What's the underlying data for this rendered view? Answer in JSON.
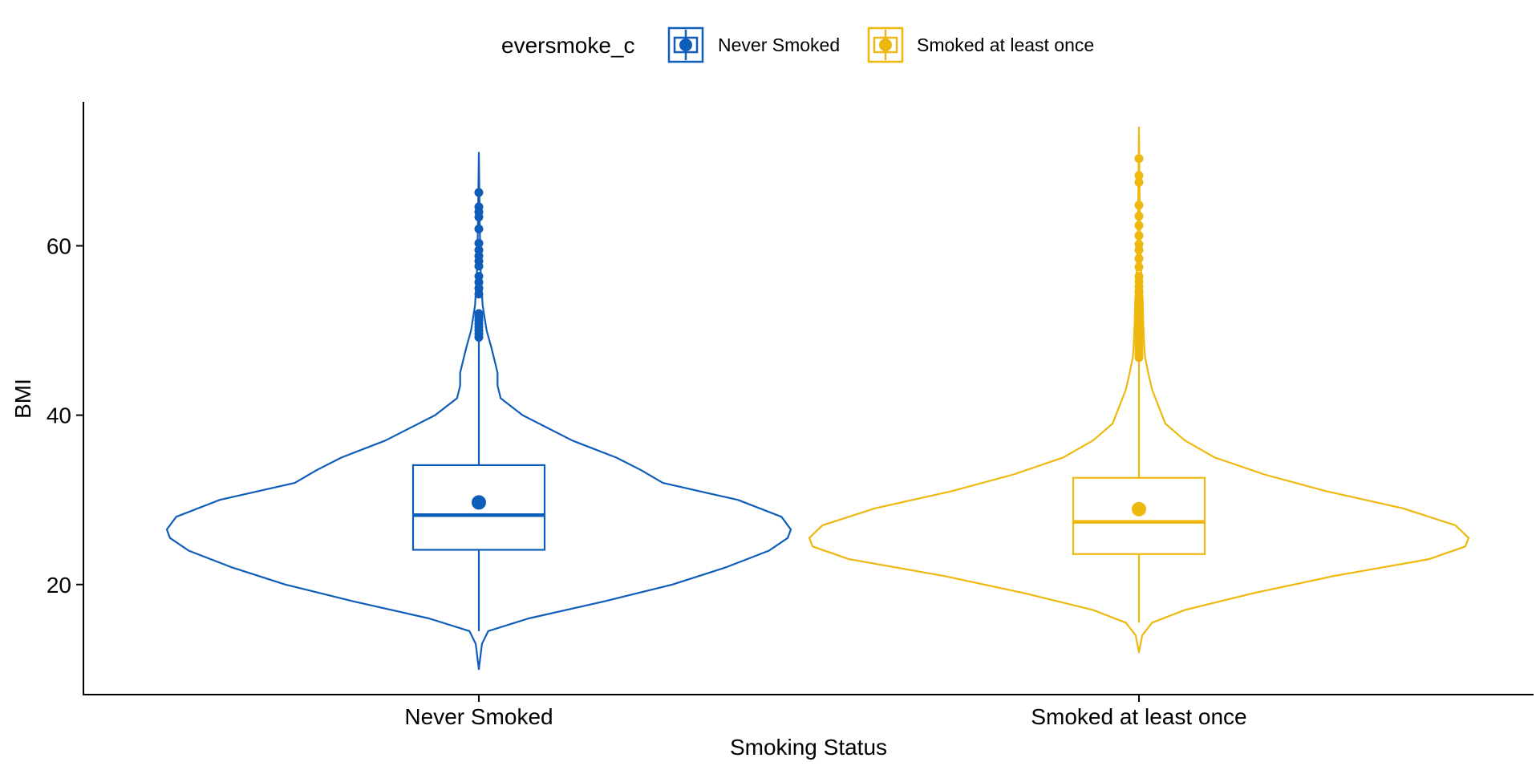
{
  "chart_data": {
    "type": "violin",
    "title": "",
    "xlabel": "Smoking Status",
    "ylabel": "BMI",
    "ylim": [
      7,
      77
    ],
    "y_ticks": [
      20,
      40,
      60
    ],
    "grid": false,
    "legend": {
      "title": "eversmoke_c",
      "placement": "top",
      "entries": [
        "Never Smoked",
        "Smoked at least once"
      ]
    },
    "categories": [
      "Never Smoked",
      "Smoked at least once"
    ],
    "series": [
      {
        "name": "Never Smoked",
        "color": "#0E5DB8",
        "violin_range": [
          10,
          71
        ],
        "density": [
          [
            10,
            0.0
          ],
          [
            13,
            0.01
          ],
          [
            14.5,
            0.03
          ],
          [
            16,
            0.16
          ],
          [
            18,
            0.4
          ],
          [
            20,
            0.62
          ],
          [
            22,
            0.79
          ],
          [
            24,
            0.93
          ],
          [
            25.5,
            0.99
          ],
          [
            26.5,
            1.0
          ],
          [
            28,
            0.97
          ],
          [
            30,
            0.83
          ],
          [
            32,
            0.59
          ],
          [
            33.5,
            0.52
          ],
          [
            35,
            0.44
          ],
          [
            37,
            0.3
          ],
          [
            40,
            0.14
          ],
          [
            42,
            0.07
          ],
          [
            43.5,
            0.06
          ],
          [
            45,
            0.06
          ],
          [
            46.5,
            0.05
          ],
          [
            48,
            0.04
          ],
          [
            50,
            0.025
          ],
          [
            53,
            0.012
          ],
          [
            57,
            0.006
          ],
          [
            62,
            0.003
          ],
          [
            71,
            0.0
          ]
        ],
        "box": {
          "q1": 24.1,
          "median": 28.2,
          "q3": 34.1,
          "whisker_low": 14.5,
          "whisker_high": 49.0,
          "mean": 29.7
        },
        "outliers": [
          49.2,
          49.6,
          50.0,
          50.4,
          50.8,
          51.2,
          51.6,
          52.0,
          54.3,
          55.0,
          55.7,
          56.4,
          57.6,
          58.2,
          58.8,
          59.5,
          60.3,
          62.0,
          63.4,
          64.0,
          64.6,
          66.3
        ]
      },
      {
        "name": "Smoked at least once",
        "color": "#EFB80F",
        "violin_range": [
          12,
          74
        ],
        "density": [
          [
            12,
            0.0
          ],
          [
            14,
            0.01
          ],
          [
            15.5,
            0.04
          ],
          [
            17,
            0.14
          ],
          [
            19,
            0.35
          ],
          [
            21,
            0.59
          ],
          [
            23,
            0.88
          ],
          [
            24.5,
            0.99
          ],
          [
            25.5,
            1.0
          ],
          [
            27,
            0.96
          ],
          [
            29,
            0.8
          ],
          [
            31,
            0.57
          ],
          [
            33,
            0.38
          ],
          [
            35,
            0.23
          ],
          [
            37,
            0.14
          ],
          [
            39,
            0.08
          ],
          [
            41,
            0.06
          ],
          [
            43,
            0.04
          ],
          [
            45,
            0.028
          ],
          [
            47,
            0.018
          ],
          [
            49,
            0.015
          ],
          [
            51,
            0.013
          ],
          [
            53,
            0.012
          ],
          [
            56,
            0.008
          ],
          [
            60,
            0.004
          ],
          [
            66,
            0.002
          ],
          [
            74,
            0.0
          ]
        ],
        "box": {
          "q1": 23.6,
          "median": 27.4,
          "q3": 32.6,
          "whisker_low": 15.5,
          "whisker_high": 46.5,
          "mean": 28.9
        },
        "outliers": [
          46.8,
          47.2,
          47.6,
          48.0,
          48.4,
          48.8,
          49.2,
          49.6,
          50.0,
          50.4,
          50.8,
          51.2,
          51.6,
          52.0,
          52.4,
          52.8,
          53.2,
          53.6,
          54.0,
          54.6,
          55.2,
          55.8,
          56.4,
          57.5,
          58.5,
          59.5,
          60.2,
          61.2,
          62.4,
          63.5,
          64.8,
          67.5,
          68.3,
          70.3
        ]
      }
    ]
  }
}
